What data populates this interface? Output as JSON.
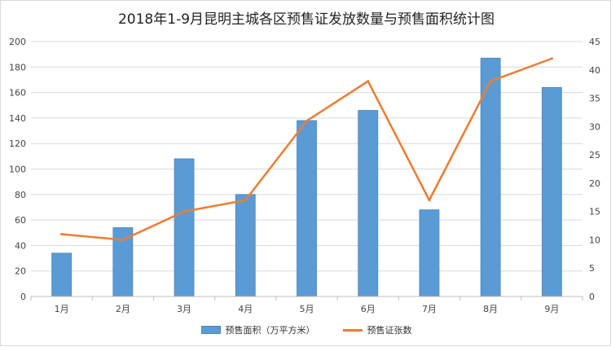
{
  "chart_data": {
    "type": "bar",
    "title": "2018年1-9月昆明主城各区预售证发放数量与预售面积统计图",
    "categories": [
      "1月",
      "2月",
      "3月",
      "4月",
      "5月",
      "6月",
      "7月",
      "8月",
      "9月"
    ],
    "series": [
      {
        "name": "预售面积（万平方米）",
        "type": "bar",
        "axis": "left",
        "color": "#5B9BD5",
        "values": [
          34,
          54,
          108,
          80,
          138,
          146,
          68,
          187,
          164
        ]
      },
      {
        "name": "预售证张数",
        "type": "line",
        "axis": "right",
        "color": "#ED7D31",
        "values": [
          11,
          10,
          15,
          17,
          31,
          38,
          17,
          38,
          42
        ]
      }
    ],
    "y_left": {
      "range": [
        0,
        200
      ],
      "ticks": [
        "0",
        "20",
        "40",
        "60",
        "80",
        "100",
        "120",
        "140",
        "160",
        "180",
        "200"
      ]
    },
    "y_right": {
      "range": [
        0,
        45
      ],
      "ticks": [
        "0",
        "5",
        "10",
        "15",
        "20",
        "25",
        "30",
        "35",
        "40",
        "45"
      ]
    },
    "grid": true,
    "legend_position": "bottom"
  }
}
